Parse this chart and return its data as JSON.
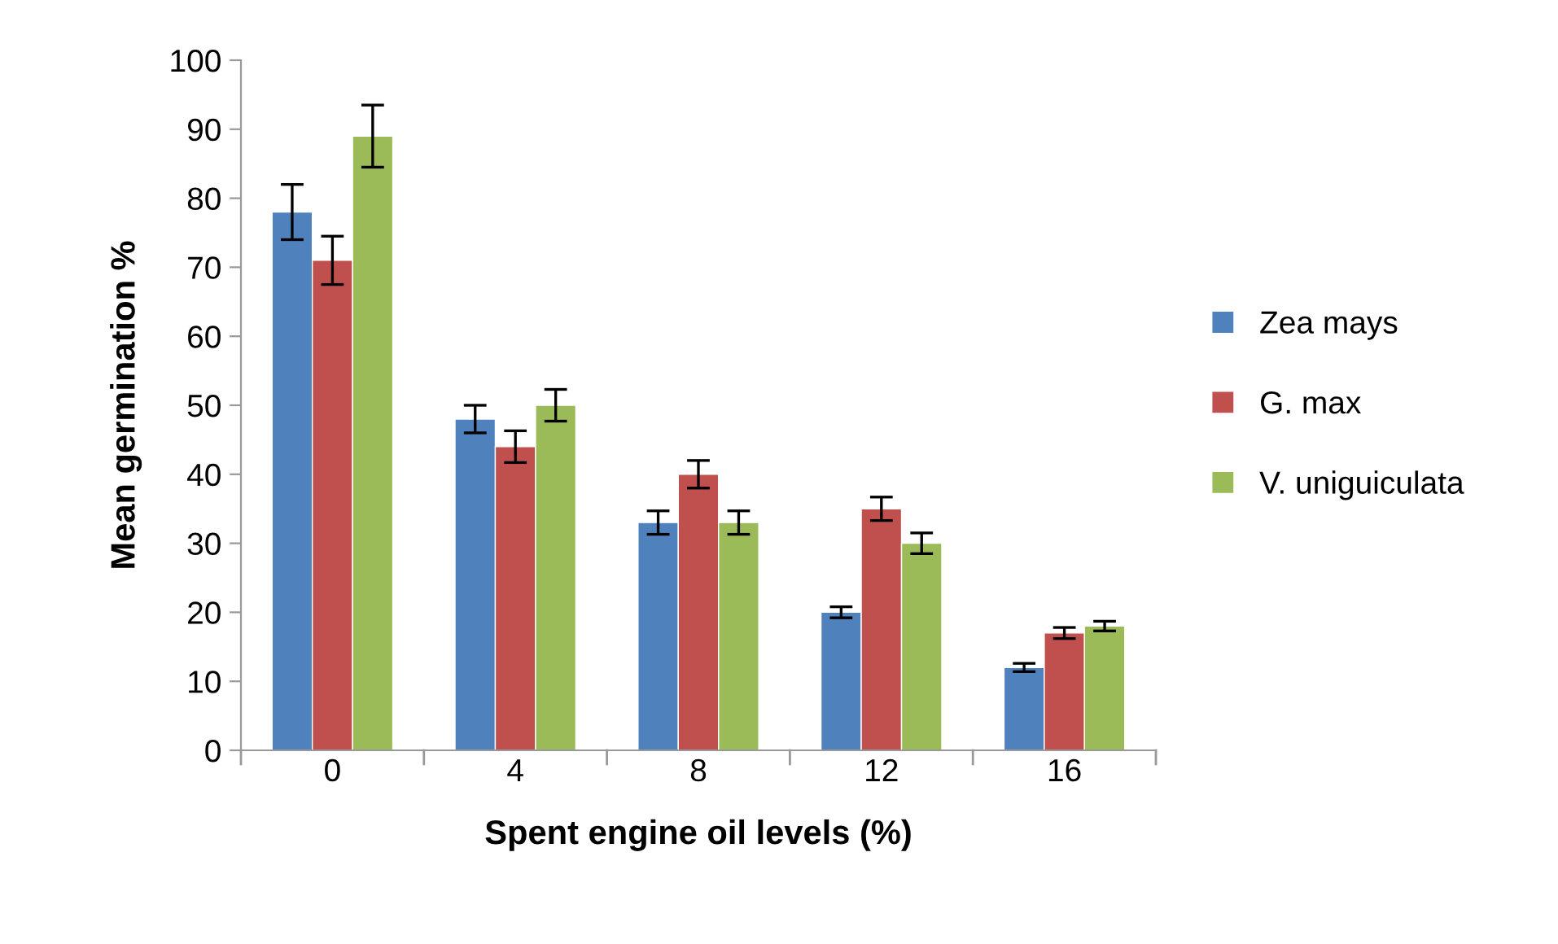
{
  "chart_data": {
    "type": "bar",
    "xlabel": "Spent engine oil levels (%)",
    "ylabel": "Mean germination %",
    "categories": [
      "0",
      "4",
      "8",
      "12",
      "16"
    ],
    "series": [
      {
        "name": "Zea mays",
        "color": "#4f81bd",
        "values": [
          78,
          48,
          33,
          20,
          12
        ],
        "errors": [
          4,
          2,
          1.7,
          0.8,
          0.6
        ]
      },
      {
        "name": "G. max",
        "color": "#c0504d",
        "values": [
          71,
          44,
          40,
          35,
          17
        ],
        "errors": [
          3.5,
          2.3,
          2,
          1.7,
          0.8
        ]
      },
      {
        "name": "V. uniguiculata",
        "color": "#9bbb59",
        "values": [
          89,
          50,
          33,
          30,
          18
        ],
        "errors": [
          4.5,
          2.3,
          1.7,
          1.5,
          0.7
        ]
      }
    ],
    "ylim": [
      0,
      100
    ],
    "yticks": [
      0,
      10,
      20,
      30,
      40,
      50,
      60,
      70,
      80,
      90,
      100
    ],
    "grid": false,
    "legend": "right"
  }
}
